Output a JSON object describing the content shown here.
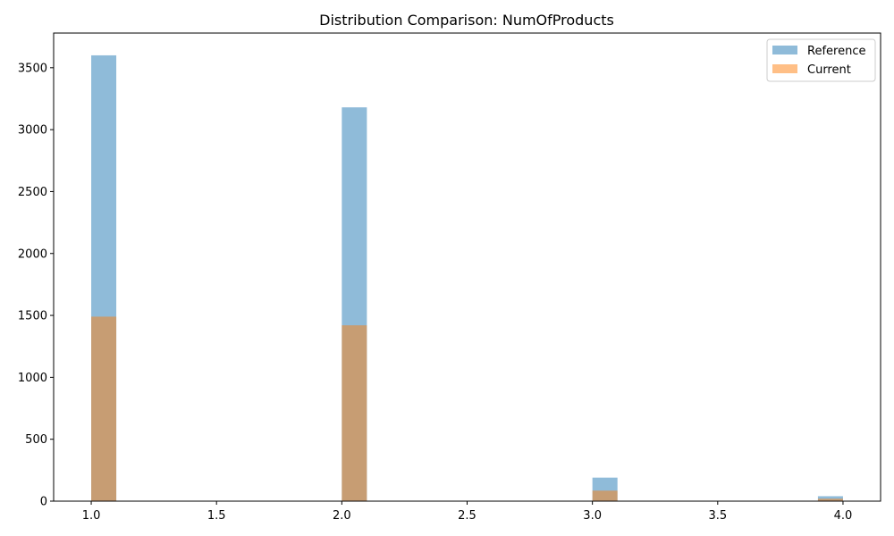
{
  "chart_data": {
    "type": "histogram",
    "title": "Distribution Comparison: NumOfProducts",
    "xlabel": "",
    "ylabel": "",
    "xlim": [
      0.85,
      4.15
    ],
    "ylim": [
      0,
      3780
    ],
    "x_ticks": [
      "1.0",
      "1.5",
      "2.0",
      "2.5",
      "3.0",
      "3.5",
      "4.0"
    ],
    "x_tick_values": [
      1.0,
      1.5,
      2.0,
      2.5,
      3.0,
      3.5,
      4.0
    ],
    "y_ticks": [
      "0",
      "500",
      "1000",
      "1500",
      "2000",
      "2500",
      "3000",
      "3500"
    ],
    "y_tick_values": [
      0,
      500,
      1000,
      1500,
      2000,
      2500,
      3000,
      3500
    ],
    "bin_width": 0.1,
    "bins": [
      {
        "start": 1.0,
        "end": 1.1
      },
      {
        "start": 2.0,
        "end": 2.1
      },
      {
        "start": 3.0,
        "end": 3.1
      },
      {
        "start": 3.9,
        "end": 4.0
      }
    ],
    "series": [
      {
        "name": "Reference",
        "color": "#1f77b4",
        "opacity": 0.5,
        "values": [
          3600,
          3180,
          190,
          40
        ]
      },
      {
        "name": "Current",
        "color": "#ff7f0e",
        "opacity": 0.5,
        "values": [
          1490,
          1420,
          85,
          20
        ]
      }
    ],
    "legend": {
      "position": "top-right",
      "entries": [
        "Reference",
        "Current"
      ]
    },
    "grid": false
  }
}
